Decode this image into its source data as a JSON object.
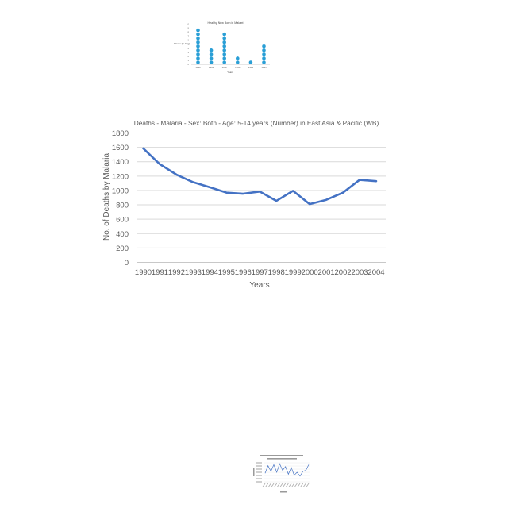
{
  "chart_data": [
    {
      "type": "dot",
      "title": "Healthy New Born in Malawi",
      "xlabel": "Years",
      "ylabel": "Infants (in lacs)",
      "categories": [
        "1990",
        "1991",
        "1992",
        "1993",
        "1994",
        "1995"
      ],
      "values": [
        9,
        4,
        8,
        2,
        1,
        5
      ],
      "yticks": [
        "0",
        "1",
        "2",
        "3",
        "4",
        "5",
        "6",
        "7",
        "8",
        "9",
        "10"
      ],
      "ylim": [
        0,
        10
      ],
      "grid": false,
      "color": "#2a9fd6"
    },
    {
      "type": "line",
      "title": "Deaths - Malaria - Sex: Both - Age: 5-14 years (Number) in East Asia & Pacific (WB)",
      "xlabel": "Years",
      "ylabel": "No. of Deaths by Malaria",
      "categories": [
        "1990",
        "1991",
        "1992",
        "1993",
        "1994",
        "1995",
        "1996",
        "1997",
        "1998",
        "1999",
        "2000",
        "2001",
        "2002",
        "2003",
        "2004"
      ],
      "series": [
        {
          "name": "",
          "values": [
            1585,
            1365,
            1220,
            1115,
            1045,
            970,
            955,
            985,
            855,
            995,
            810,
            870,
            970,
            1148,
            1130
          ]
        }
      ],
      "ylim": [
        0,
        1800
      ],
      "yticks": [
        0,
        200,
        400,
        600,
        800,
        1000,
        1200,
        1400,
        1600,
        1800
      ],
      "grid": true,
      "color": "#4472c4"
    },
    {
      "type": "line",
      "title": "",
      "xlabel": "",
      "ylabel": "",
      "categories": [
        "1",
        "2",
        "3",
        "4",
        "5",
        "6",
        "7",
        "8",
        "9",
        "10",
        "11",
        "12",
        "13",
        "14",
        "15",
        "16"
      ],
      "series": [
        {
          "name": "",
          "values": [
            0.45,
            0.85,
            0.55,
            0.9,
            0.5,
            0.95,
            0.6,
            0.8,
            0.4,
            0.75,
            0.35,
            0.5,
            0.3,
            0.55,
            0.6,
            0.9
          ]
        }
      ],
      "ylim": [
        0,
        1
      ],
      "grid": true,
      "color": "#4472c4"
    }
  ]
}
